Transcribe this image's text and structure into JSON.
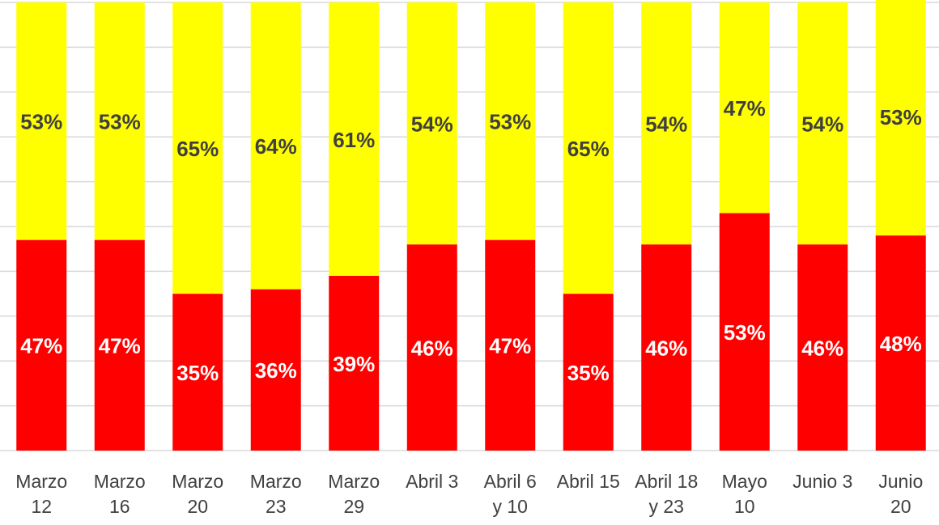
{
  "chart_data": {
    "type": "stacked_bar",
    "categories": [
      "Marzo\n12",
      "Marzo\n16",
      "Marzo\n20",
      "Marzo\n23",
      "Marzo\n29",
      "Abril 3",
      "Abril 6\ny 10",
      "Abril 15",
      "Abril 18\ny 23",
      "Mayo\n10",
      "Junio 3",
      "Junio\n20"
    ],
    "series": [
      {
        "color": "#ff0000",
        "values": [
          47,
          47,
          35,
          36,
          39,
          46,
          47,
          35,
          46,
          53,
          46,
          48
        ],
        "value_labels": [
          "47%",
          "47%",
          "35%",
          "36%",
          "39%",
          "46%",
          "47%",
          "35%",
          "46%",
          "53%",
          "46%",
          "48%"
        ]
      },
      {
        "color": "#ffff00",
        "values": [
          53,
          53,
          65,
          64,
          61,
          54,
          53,
          65,
          54,
          47,
          54,
          53
        ],
        "value_labels": [
          "53%",
          "53%",
          "65%",
          "64%",
          "61%",
          "54%",
          "53%",
          "65%",
          "54%",
          "47%",
          "54%",
          "53%"
        ]
      }
    ],
    "ylim": [
      0,
      100
    ],
    "yticks": [
      0,
      10,
      20,
      30,
      40,
      50,
      60,
      70,
      80,
      90,
      100
    ],
    "grid": true
  }
}
